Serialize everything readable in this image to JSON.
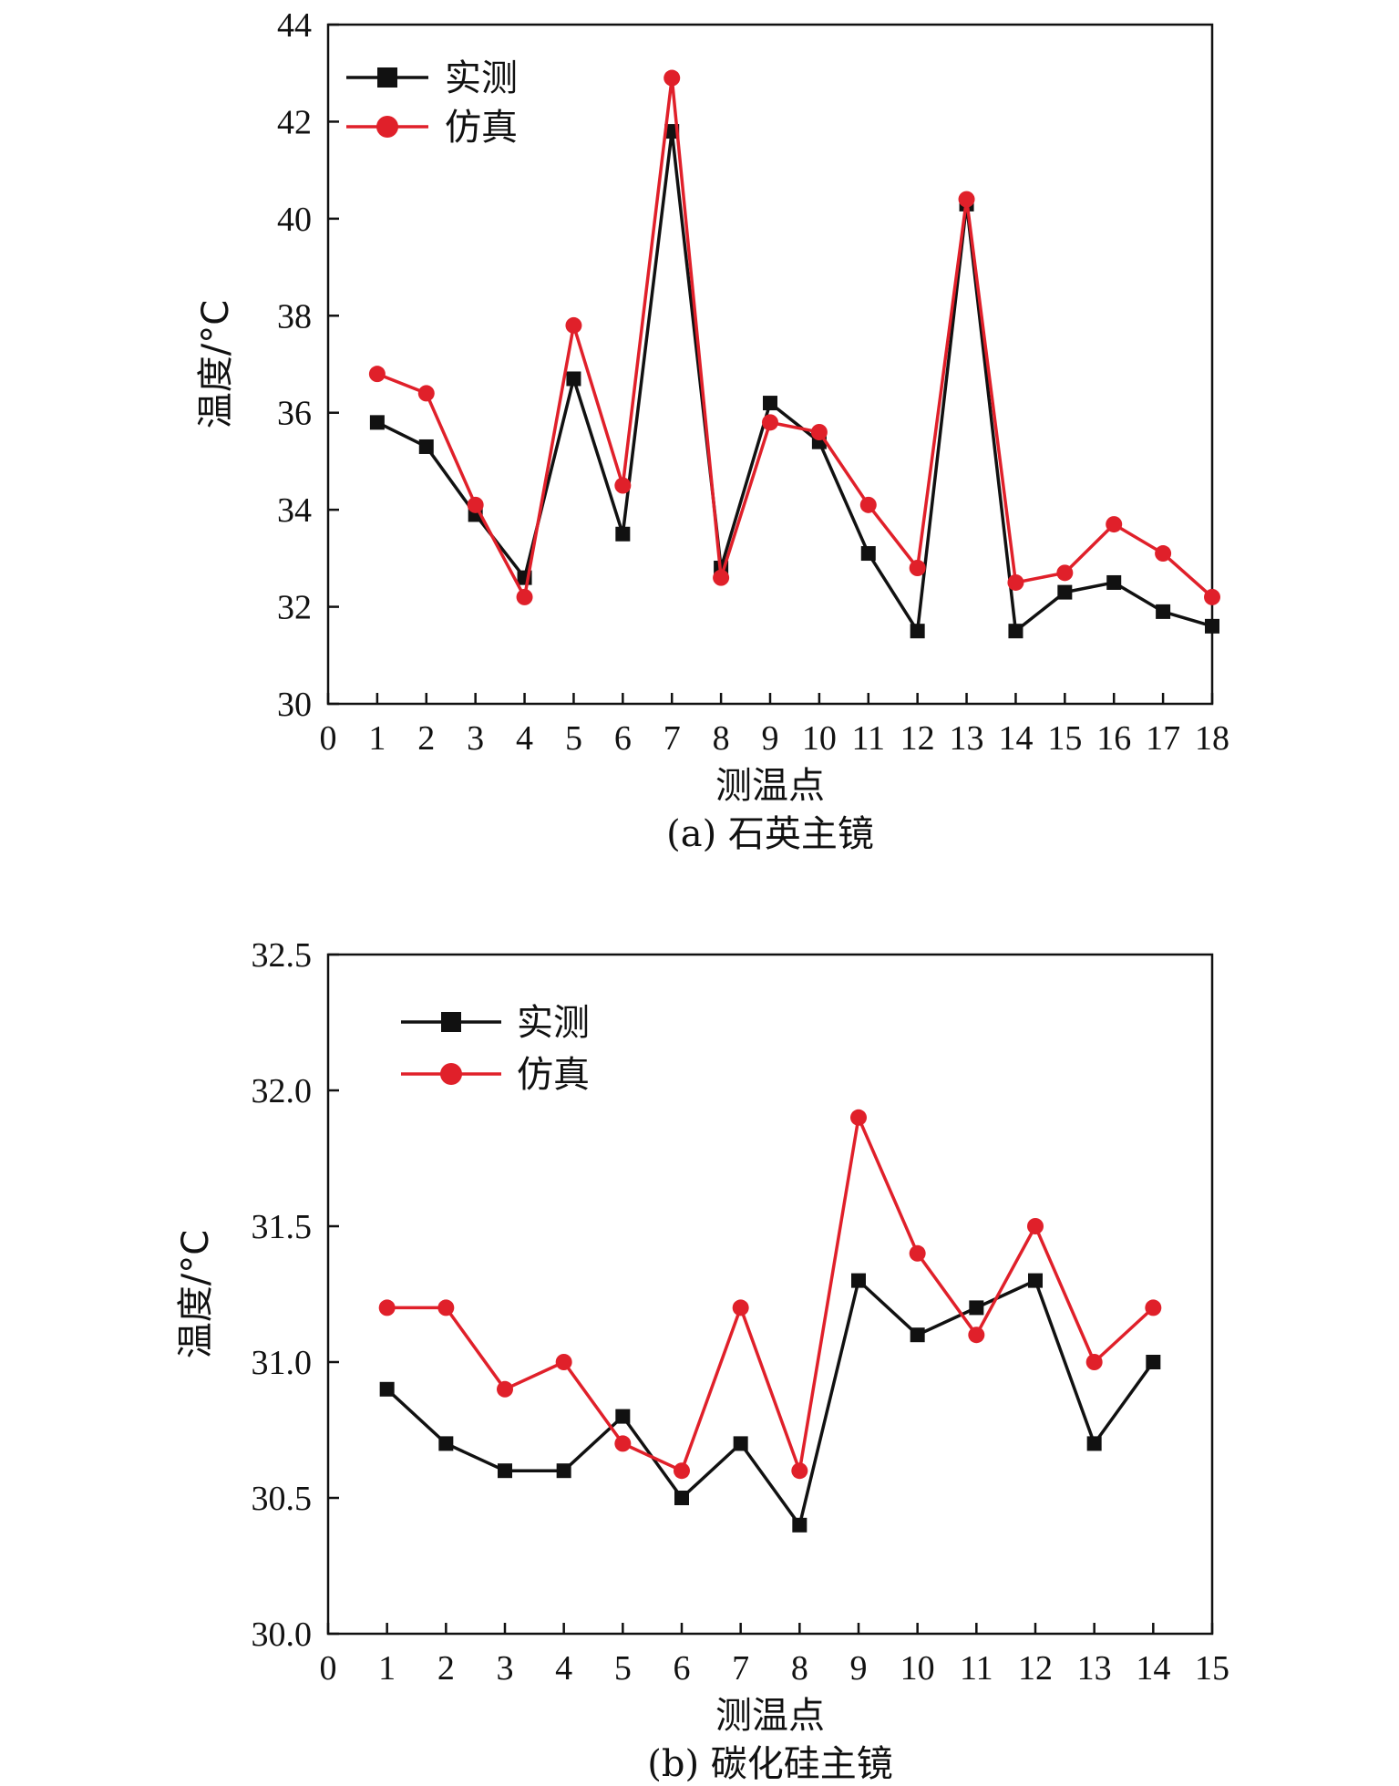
{
  "colors": {
    "measured": "#111111",
    "simulated": "#e0202a",
    "axis": "#111111"
  },
  "chart_data": [
    {
      "type": "line",
      "caption": "(a) 石英主镜",
      "xlabel": "测温点",
      "ylabel": "温度/°C",
      "xlim": [
        0,
        18
      ],
      "ylim": [
        30,
        44
      ],
      "xticks": [
        0,
        1,
        2,
        3,
        4,
        5,
        6,
        7,
        8,
        9,
        10,
        11,
        12,
        13,
        14,
        15,
        16,
        17,
        18
      ],
      "yticks": [
        30,
        32,
        34,
        36,
        38,
        40,
        42,
        44
      ],
      "ytick_labels": [
        "30",
        "32",
        "34",
        "36",
        "38",
        "40",
        "42",
        "44"
      ],
      "legend_position": "top-left",
      "x": [
        1,
        2,
        3,
        4,
        5,
        6,
        7,
        8,
        9,
        10,
        11,
        12,
        13,
        14,
        15,
        16,
        17,
        18
      ],
      "series": [
        {
          "name": "实测",
          "marker": "square",
          "color": "#111111",
          "values": [
            35.8,
            35.3,
            33.9,
            32.6,
            36.7,
            33.5,
            41.8,
            32.8,
            36.2,
            35.4,
            33.1,
            31.5,
            40.3,
            31.5,
            32.3,
            32.5,
            31.9,
            31.6
          ]
        },
        {
          "name": "仿真",
          "marker": "circle",
          "color": "#e0202a",
          "values": [
            36.8,
            36.4,
            34.1,
            32.2,
            37.8,
            34.5,
            42.9,
            32.6,
            35.8,
            35.6,
            34.1,
            32.8,
            40.4,
            32.5,
            32.7,
            33.7,
            33.1,
            32.2
          ]
        }
      ]
    },
    {
      "type": "line",
      "caption": "(b) 碳化硅主镜",
      "xlabel": "测温点",
      "ylabel": "温度/°C",
      "xlim": [
        0,
        15
      ],
      "ylim": [
        30.0,
        32.5
      ],
      "xticks": [
        0,
        1,
        2,
        3,
        4,
        5,
        6,
        7,
        8,
        9,
        10,
        11,
        12,
        13,
        14,
        15
      ],
      "yticks": [
        30.0,
        30.5,
        31.0,
        31.5,
        32.0,
        32.5
      ],
      "ytick_labels": [
        "30.0",
        "30.5",
        "31.0",
        "31.5",
        "32.0",
        "32.5"
      ],
      "legend_position": "top-left",
      "x": [
        1,
        2,
        3,
        4,
        5,
        6,
        7,
        8,
        9,
        10,
        11,
        12,
        13,
        14
      ],
      "series": [
        {
          "name": "实测",
          "marker": "square",
          "color": "#111111",
          "values": [
            30.9,
            30.7,
            30.6,
            30.6,
            30.8,
            30.5,
            30.7,
            30.4,
            31.3,
            31.1,
            31.2,
            31.3,
            30.7,
            31.0
          ]
        },
        {
          "name": "仿真",
          "marker": "circle",
          "color": "#e0202a",
          "values": [
            31.2,
            31.2,
            30.9,
            31.0,
            30.7,
            30.6,
            31.2,
            30.6,
            31.9,
            31.4,
            31.1,
            31.5,
            31.0,
            31.2
          ]
        }
      ]
    }
  ]
}
